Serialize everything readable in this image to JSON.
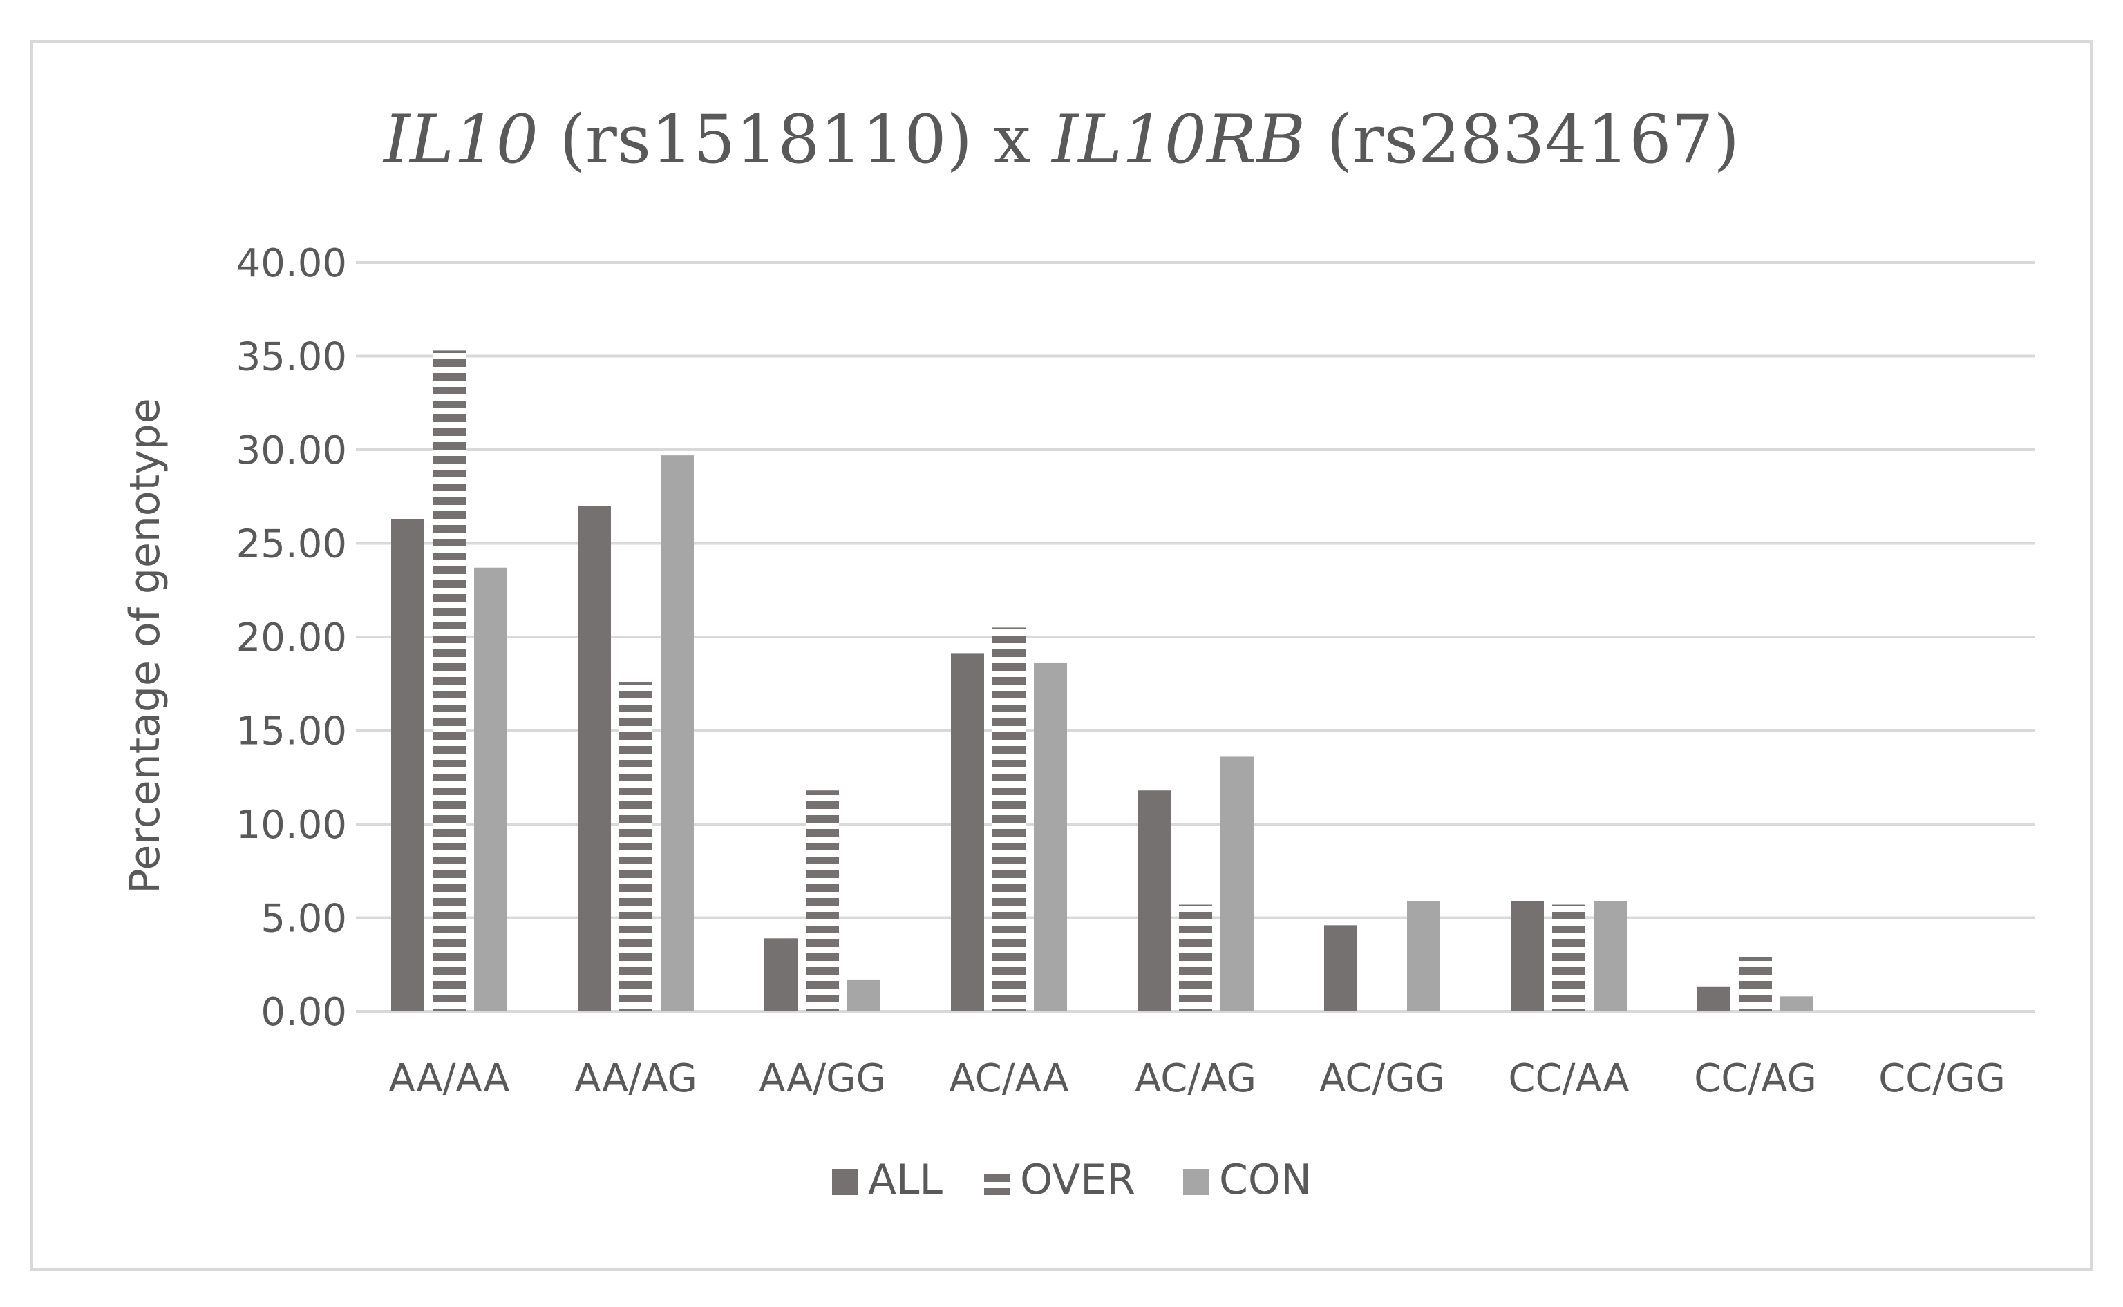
{
  "chart_data": {
    "type": "bar",
    "title": {
      "parts": [
        {
          "text": "IL10",
          "italic": true
        },
        {
          "text": " (rs1518110) x ",
          "italic": false
        },
        {
          "text": "IL10RB",
          "italic": true
        },
        {
          "text": " (rs2834167)",
          "italic": false
        }
      ]
    },
    "ylabel": "Percentage of genotype",
    "xlabel": "",
    "ylim": [
      0,
      40
    ],
    "yticks": [
      "0.00",
      "5.00",
      "10.00",
      "15.00",
      "20.00",
      "25.00",
      "30.00",
      "35.00",
      "40.00"
    ],
    "grid": true,
    "legend_position": "bottom",
    "categories": [
      "AA/AA",
      "AA/AG",
      "AA/GG",
      "AC/AA",
      "AC/AG",
      "AC/GG",
      "CC/AA",
      "CC/AG",
      "CC/GG"
    ],
    "series": [
      {
        "name": "ALL",
        "color": "#767171",
        "pattern": "solid",
        "values": [
          26.3,
          27.0,
          3.9,
          19.1,
          11.8,
          4.6,
          5.9,
          1.3,
          0
        ]
      },
      {
        "name": "OVER",
        "color": "#767171",
        "pattern": "horizontal-stripes",
        "values": [
          35.3,
          17.6,
          11.8,
          20.5,
          5.7,
          0,
          5.7,
          2.9,
          0
        ]
      },
      {
        "name": "CON",
        "color": "#a6a6a6",
        "pattern": "solid",
        "values": [
          23.7,
          29.7,
          1.7,
          18.6,
          13.6,
          5.9,
          5.9,
          0.8,
          0
        ]
      }
    ]
  }
}
